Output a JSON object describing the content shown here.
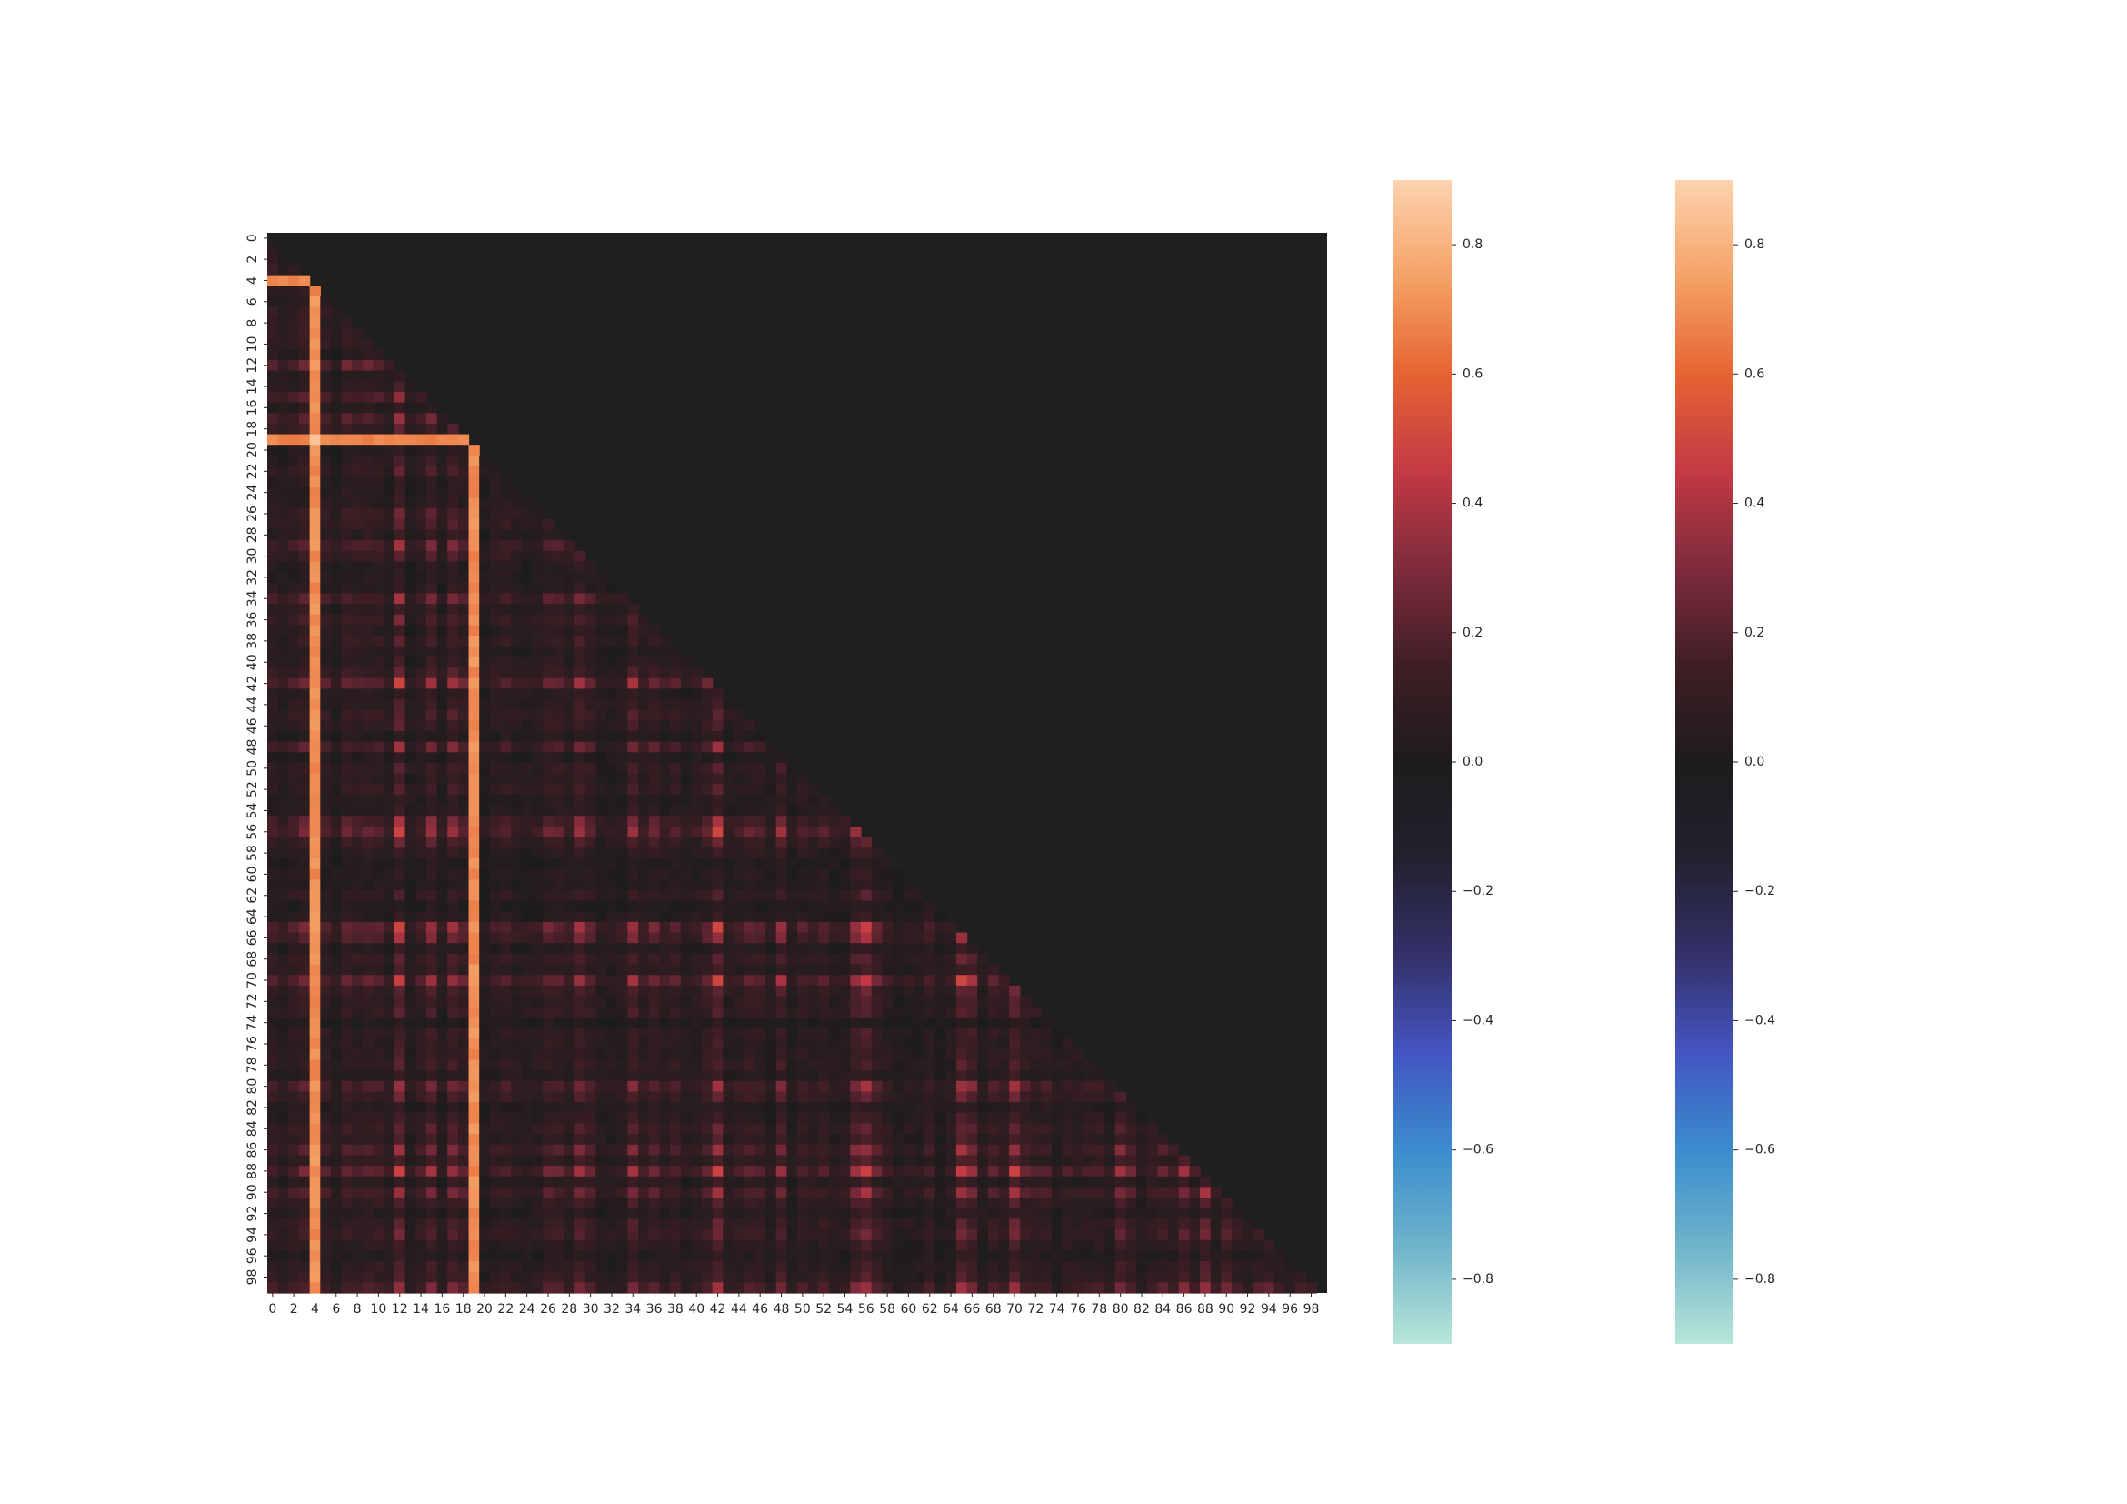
{
  "chart_data": [
    {
      "type": "heatmap",
      "title": "",
      "xlabel": "",
      "ylabel": "",
      "mask": "upper triangle (k=1) masked",
      "n": 100,
      "x_tick_labels": [
        "0",
        "2",
        "4",
        "6",
        "8",
        "10",
        "12",
        "14",
        "16",
        "18",
        "20",
        "22",
        "24",
        "26",
        "28",
        "30",
        "32",
        "34",
        "36",
        "38",
        "40",
        "42",
        "44",
        "46",
        "48",
        "50",
        "52",
        "54",
        "56",
        "58",
        "60",
        "62",
        "64",
        "66",
        "68",
        "70",
        "72",
        "74",
        "76",
        "78",
        "80",
        "82",
        "84",
        "86",
        "88",
        "90",
        "92",
        "94",
        "96",
        "98"
      ],
      "y_tick_labels": [
        "0",
        "2",
        "4",
        "6",
        "8",
        "10",
        "12",
        "14",
        "16",
        "18",
        "20",
        "22",
        "24",
        "26",
        "28",
        "30",
        "32",
        "34",
        "36",
        "38",
        "40",
        "42",
        "44",
        "46",
        "48",
        "50",
        "52",
        "54",
        "56",
        "58",
        "60",
        "62",
        "64",
        "66",
        "68",
        "70",
        "72",
        "74",
        "76",
        "78",
        "80",
        "82",
        "84",
        "86",
        "88",
        "90",
        "92",
        "94",
        "96",
        "98"
      ],
      "vmin": -0.9,
      "vmax": 0.9,
      "colormap": "icefire",
      "background_color": "#1f1f1f",
      "grid": false,
      "strong_variables": [
        4,
        19
      ],
      "moderate_variables": [
        12,
        42,
        56,
        65,
        70,
        88
      ],
      "band_variables": [
        15,
        17,
        29,
        34,
        48,
        55,
        66,
        80,
        86,
        90,
        99
      ],
      "cross_row_values": [
        {
          "row": 4,
          "value": 0.65
        },
        {
          "row": 19,
          "value": 0.65
        },
        {
          "row": 88,
          "value": 0.45
        }
      ],
      "value_range_lower_triangle": [
        0.0,
        0.9
      ]
    },
    {
      "type": "colorbar",
      "ticks": [
        "0.8",
        "0.6",
        "0.4",
        "0.2",
        "0.0",
        "−0.2",
        "−0.4",
        "−0.6",
        "−0.8"
      ],
      "tick_values": [
        0.8,
        0.6,
        0.4,
        0.2,
        0.0,
        -0.2,
        -0.4,
        -0.6,
        -0.8
      ],
      "vmin": -0.9,
      "vmax": 0.9
    },
    {
      "type": "colorbar",
      "ticks": [
        "0.8",
        "0.6",
        "0.4",
        "0.2",
        "0.0",
        "−0.2",
        "−0.4",
        "−0.6",
        "−0.8"
      ],
      "tick_values": [
        0.8,
        0.6,
        0.4,
        0.2,
        0.0,
        -0.2,
        -0.4,
        -0.6,
        -0.8
      ],
      "vmin": -0.9,
      "vmax": 0.9
    }
  ],
  "colormap_stops": [
    {
      "v": -0.9,
      "c": "#b8e6d8"
    },
    {
      "v": -0.75,
      "c": "#6fb4cb"
    },
    {
      "v": -0.6,
      "c": "#3a8ccd"
    },
    {
      "v": -0.45,
      "c": "#4455c3"
    },
    {
      "v": -0.3,
      "c": "#34306a"
    },
    {
      "v": -0.15,
      "c": "#22212f"
    },
    {
      "v": 0.0,
      "c": "#1d1c1c"
    },
    {
      "v": 0.15,
      "c": "#3f1e25"
    },
    {
      "v": 0.3,
      "c": "#7e2b3b"
    },
    {
      "v": 0.45,
      "c": "#c33a44"
    },
    {
      "v": 0.6,
      "c": "#e66432"
    },
    {
      "v": 0.75,
      "c": "#f4a266"
    },
    {
      "v": 0.9,
      "c": "#fdd3af"
    }
  ]
}
